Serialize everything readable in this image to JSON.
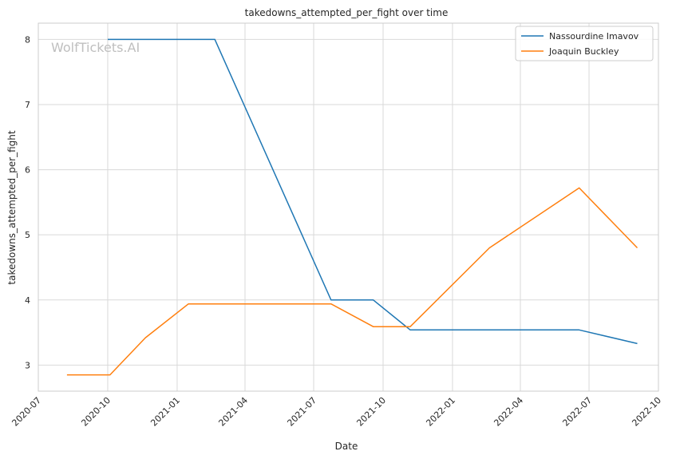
{
  "chart_data": {
    "type": "line",
    "title": "takedowns_attempted_per_fight over time",
    "xlabel": "Date",
    "ylabel": "takedowns_attempted_per_fight",
    "watermark": "WolfTickets.AI",
    "xlim": [
      "2020-07-01",
      "2022-10-01"
    ],
    "ylim": [
      2.6,
      8.25
    ],
    "x_ticks": [
      "2020-07",
      "2020-10",
      "2021-01",
      "2021-04",
      "2021-07",
      "2021-10",
      "2022-01",
      "2022-04",
      "2022-07",
      "2022-10"
    ],
    "y_ticks": [
      3,
      4,
      5,
      6,
      7,
      8
    ],
    "grid": true,
    "legend_position": "top-right",
    "series": [
      {
        "name": "Nassourdine Imavov",
        "color": "#1f77b4",
        "points": [
          {
            "x": "2020-10-01",
            "y": 8.0
          },
          {
            "x": "2021-02-20",
            "y": 8.0
          },
          {
            "x": "2021-07-24",
            "y": 4.0
          },
          {
            "x": "2021-09-18",
            "y": 4.0
          },
          {
            "x": "2021-11-06",
            "y": 3.54
          },
          {
            "x": "2022-06-18",
            "y": 3.54
          },
          {
            "x": "2022-09-03",
            "y": 3.33
          }
        ]
      },
      {
        "name": "Joaquin Buckley",
        "color": "#ff7f0e",
        "points": [
          {
            "x": "2020-08-08",
            "y": 2.85
          },
          {
            "x": "2020-10-04",
            "y": 2.85
          },
          {
            "x": "2020-11-20",
            "y": 3.42
          },
          {
            "x": "2021-01-16",
            "y": 3.94
          },
          {
            "x": "2021-07-24",
            "y": 3.94
          },
          {
            "x": "2021-09-18",
            "y": 3.59
          },
          {
            "x": "2021-11-06",
            "y": 3.59
          },
          {
            "x": "2022-02-19",
            "y": 4.8
          },
          {
            "x": "2022-06-18",
            "y": 5.72
          },
          {
            "x": "2022-09-03",
            "y": 4.8
          }
        ]
      }
    ]
  }
}
